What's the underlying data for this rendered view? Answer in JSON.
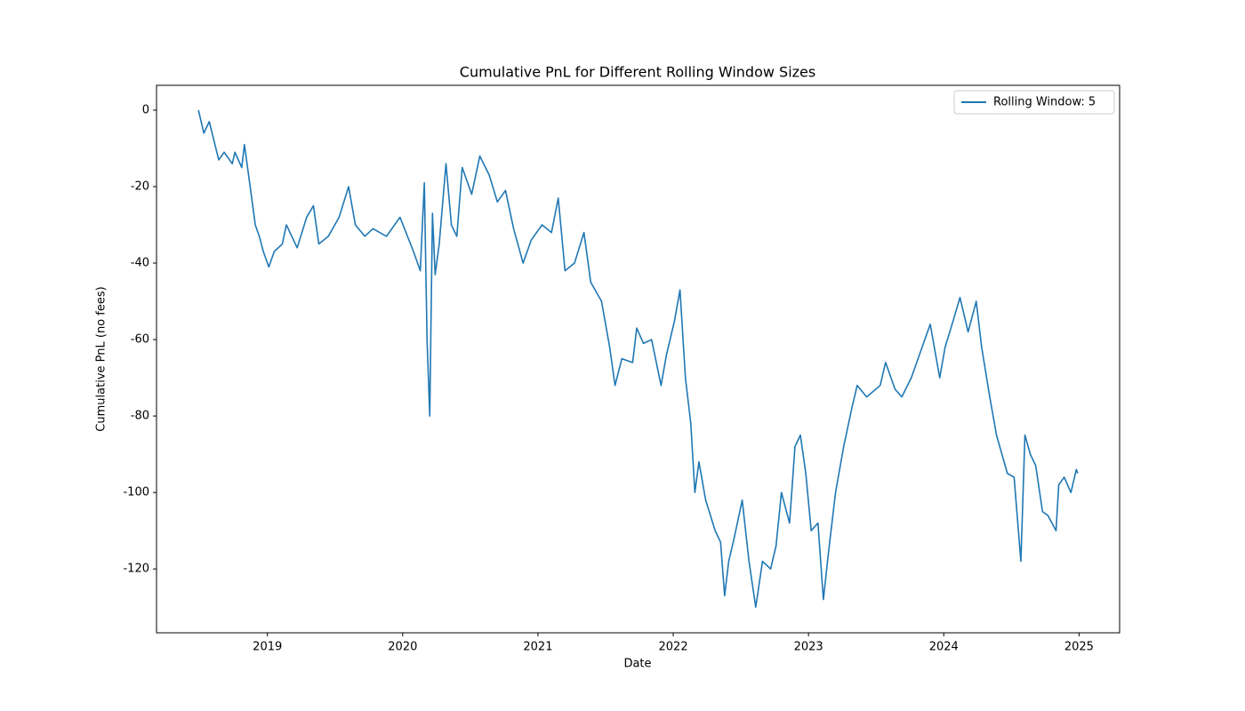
{
  "chart_data": {
    "type": "line",
    "title": "Cumulative PnL for Different Rolling Window Sizes",
    "x_label": "Date",
    "y_label": "Cumulative PnL (no fees)",
    "x": [
      2018.49,
      2018.53,
      2018.57,
      2018.64,
      2018.68,
      2018.74,
      2018.76,
      2018.81,
      2018.83,
      2018.88,
      2018.91,
      2018.94,
      2018.97,
      2019.01,
      2019.05,
      2019.11,
      2019.14,
      2019.22,
      2019.29,
      2019.34,
      2019.38,
      2019.45,
      2019.53,
      2019.6,
      2019.65,
      2019.72,
      2019.78,
      2019.88,
      2019.98,
      2020.08,
      2020.13,
      2020.16,
      2020.18,
      2020.2,
      2020.22,
      2020.24,
      2020.27,
      2020.32,
      2020.36,
      2020.4,
      2020.44,
      2020.51,
      2020.57,
      2020.64,
      2020.7,
      2020.76,
      2020.82,
      2020.89,
      2020.95,
      2021.03,
      2021.1,
      2021.15,
      2021.2,
      2021.27,
      2021.34,
      2021.39,
      2021.47,
      2021.53,
      2021.57,
      2021.62,
      2021.7,
      2021.73,
      2021.78,
      2021.84,
      2021.91,
      2021.95,
      2022.01,
      2022.05,
      2022.09,
      2022.13,
      2022.16,
      2022.19,
      2022.24,
      2022.31,
      2022.35,
      2022.38,
      2022.41,
      2022.45,
      2022.51,
      2022.56,
      2022.61,
      2022.66,
      2022.72,
      2022.76,
      2022.8,
      2022.86,
      2022.9,
      2022.94,
      2022.98,
      2023.02,
      2023.07,
      2023.11,
      2023.15,
      2023.2,
      2023.26,
      2023.32,
      2023.36,
      2023.43,
      2023.53,
      2023.57,
      2023.64,
      2023.69,
      2023.76,
      2023.82,
      2023.9,
      2023.97,
      2024.01,
      2024.07,
      2024.12,
      2024.18,
      2024.24,
      2024.28,
      2024.34,
      2024.39,
      2024.43,
      2024.47,
      2024.52,
      2024.57,
      2024.6,
      2024.64,
      2024.68,
      2024.73,
      2024.77,
      2024.83,
      2024.85,
      2024.89,
      2024.94,
      2024.98,
      2024.99
    ],
    "series": [
      {
        "name": "Rolling Window: 5",
        "color": "#1f77b4",
        "values": [
          0,
          -6,
          -3,
          -13,
          -11,
          -14,
          -11,
          -15,
          -9,
          -22,
          -30,
          -33,
          -37,
          -41,
          -37,
          -35,
          -30,
          -36,
          -28,
          -25,
          -35,
          -33,
          -28,
          -20,
          -30,
          -33,
          -31,
          -33,
          -28,
          -37,
          -42,
          -19,
          -60,
          -80,
          -27,
          -43,
          -35,
          -14,
          -30,
          -33,
          -15,
          -22,
          -12,
          -17,
          -24,
          -21,
          -31,
          -40,
          -34,
          -30,
          -32,
          -23,
          -42,
          -40,
          -32,
          -45,
          -50,
          -62,
          -72,
          -65,
          -66,
          -57,
          -61,
          -60,
          -72,
          -64,
          -55,
          -47,
          -70,
          -82,
          -100,
          -92,
          -102,
          -110,
          -113,
          -127,
          -118,
          -112,
          -102,
          -118,
          -130,
          -118,
          -120,
          -114,
          -100,
          -108,
          -88,
          -85,
          -95,
          -110,
          -108,
          -128,
          -115,
          -100,
          -88,
          -78,
          -72,
          -75,
          -72,
          -66,
          -73,
          -75,
          -70,
          -64,
          -56,
          -70,
          -62,
          -55,
          -49,
          -58,
          -50,
          -62,
          -75,
          -85,
          -90,
          -95,
          -96,
          -118,
          -85,
          -90,
          -93,
          -105,
          -106,
          -110,
          -98,
          -96,
          -100,
          -94,
          -95
        ]
      }
    ],
    "xlim": [
      2018.18,
      2025.3
    ],
    "xticks": [
      2019,
      2020,
      2021,
      2022,
      2023,
      2024,
      2025
    ],
    "ylim": [
      -136.7,
      6.5
    ],
    "yticks": [
      0,
      -20,
      -40,
      -60,
      -80,
      -100,
      -120
    ],
    "legend": "upper right",
    "grid": false
  }
}
